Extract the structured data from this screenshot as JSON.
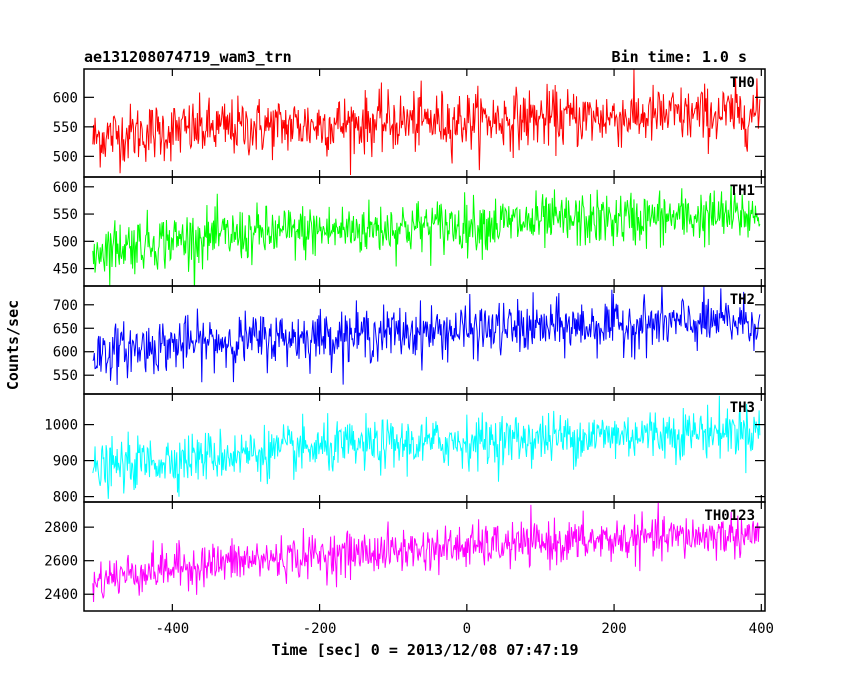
{
  "header": {
    "title": "ae131208074719_wam3_trn",
    "bin_time": "Bin time: 1.0 s"
  },
  "chart_data": {
    "type": "line",
    "xlabel": "Time [sec] 0 = 2013/12/08 07:47:19",
    "ylabel": "Counts/sec",
    "xlim": [
      -520,
      405
    ],
    "x_ticks": [
      -400,
      -200,
      0,
      200,
      400
    ],
    "x_start": -508,
    "x_end": 398,
    "bin_time": 1.0,
    "panels": [
      {
        "name": "TH0",
        "color": "#ff0000",
        "ylim": [
          465,
          648
        ],
        "yticks": [
          500,
          550,
          600
        ],
        "trend_start": 528,
        "trend_end": 572,
        "noise": 25
      },
      {
        "name": "TH1",
        "color": "#00ff00",
        "ylim": [
          418,
          618
        ],
        "yticks": [
          450,
          500,
          550,
          600
        ],
        "trend_start": 478,
        "trend_end": 548,
        "noise": 25
      },
      {
        "name": "TH2",
        "color": "#0000ff",
        "ylim": [
          510,
          740
        ],
        "yticks": [
          550,
          600,
          650,
          700
        ],
        "trend_start": 588,
        "trend_end": 665,
        "noise": 28
      },
      {
        "name": "TH3",
        "color": "#00ffff",
        "ylim": [
          785,
          1085
        ],
        "yticks": [
          800,
          900,
          1000
        ],
        "trend_start": 860,
        "trend_end": 985,
        "noise": 35
      },
      {
        "name": "TH0123",
        "color": "#ff00ff",
        "ylim": [
          2300,
          2950
        ],
        "yticks": [
          2400,
          2600,
          2800
        ],
        "trend_start": 2450,
        "trend_end": 2760,
        "noise": 65
      }
    ]
  }
}
